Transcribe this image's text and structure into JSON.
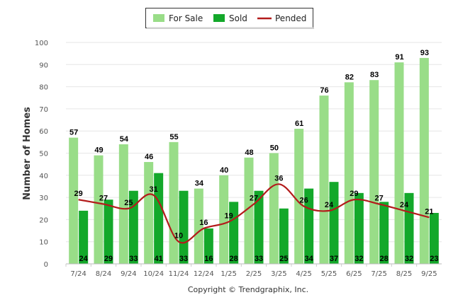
{
  "chart_data": {
    "type": "bar",
    "title": "",
    "xlabel": "",
    "ylabel": "Number of Homes",
    "ylim": [
      0,
      100
    ],
    "yticks": [
      0,
      10,
      20,
      30,
      40,
      50,
      60,
      70,
      80,
      90,
      100
    ],
    "grid": true,
    "legend_position": "top-center",
    "categories": [
      "7/24",
      "8/24",
      "9/24",
      "10/24",
      "11/24",
      "12/24",
      "1/25",
      "2/25",
      "3/25",
      "4/25",
      "5/25",
      "6/25",
      "7/25",
      "8/25",
      "9/25"
    ],
    "series": [
      {
        "name": "For Sale",
        "kind": "bar",
        "color": "#99dd88",
        "values": [
          57,
          49,
          54,
          46,
          55,
          34,
          40,
          48,
          50,
          61,
          76,
          82,
          83,
          91,
          93
        ]
      },
      {
        "name": "Sold",
        "kind": "bar",
        "color": "#13a82a",
        "values": [
          24,
          29,
          33,
          41,
          33,
          16,
          28,
          33,
          25,
          34,
          37,
          32,
          28,
          32,
          23
        ]
      },
      {
        "name": "Pended",
        "kind": "line",
        "color": "#b31b1b",
        "values": [
          29,
          27,
          25,
          31,
          10,
          16,
          19,
          27,
          36,
          26,
          24,
          29,
          27,
          24,
          21
        ]
      }
    ]
  },
  "footer": {
    "copyright": "Copyright © Trendgraphix, Inc."
  }
}
